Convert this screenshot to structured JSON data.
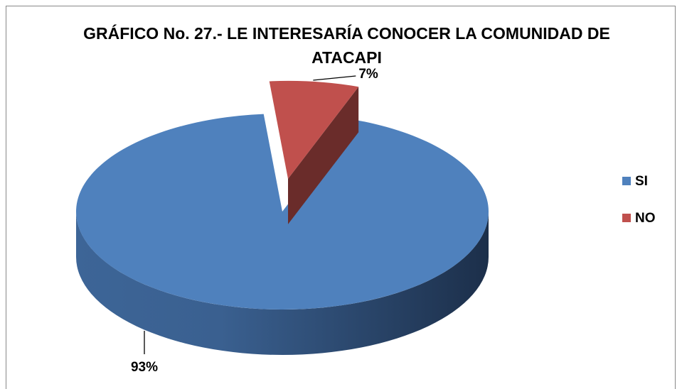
{
  "chart_data": {
    "type": "pie",
    "title": "GRÁFICO No. 27.- LE INTERESARÍA CONOCER LA COMUNIDAD DE ATACAPI",
    "categories": [
      "SI",
      "NO"
    ],
    "values": [
      93,
      7
    ],
    "value_labels": [
      "93%",
      "7%"
    ],
    "colors": [
      "#4f81bd",
      "#c0504d"
    ],
    "legend": "right"
  }
}
